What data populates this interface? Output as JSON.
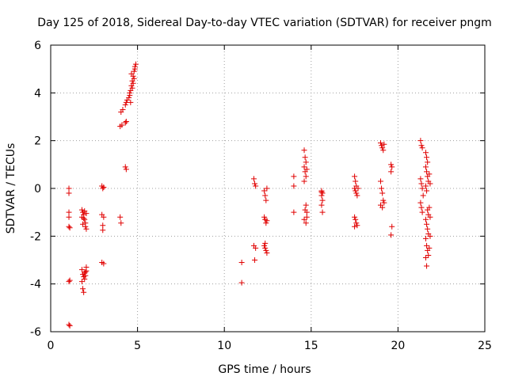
{
  "chart_data": {
    "type": "scatter",
    "title": "Day 125 of 2018, Sidereal Day-to-day VTEC variation (SDTVAR) for receiver pngm",
    "xlabel": "GPS time / hours",
    "ylabel": "SDTVAR / TECUs",
    "xlim": [
      0,
      25
    ],
    "ylim": [
      -6,
      6
    ],
    "xticks": [
      0,
      5,
      10,
      15,
      20,
      25
    ],
    "yticks": [
      -6,
      -4,
      -2,
      0,
      2,
      4,
      6
    ],
    "grid": true,
    "marker": "+",
    "color": "#e00000",
    "series": [
      {
        "name": "SDTVAR",
        "points": [
          [
            1.05,
            0.0
          ],
          [
            1.05,
            -0.2
          ],
          [
            1.05,
            -1.0
          ],
          [
            1.05,
            -1.2
          ],
          [
            1.05,
            -1.6
          ],
          [
            1.1,
            -1.65
          ],
          [
            1.05,
            -3.9
          ],
          [
            1.1,
            -3.85
          ],
          [
            1.05,
            -5.7
          ],
          [
            1.1,
            -5.75
          ],
          [
            1.8,
            -0.9
          ],
          [
            1.85,
            -1.0
          ],
          [
            1.9,
            -1.1
          ],
          [
            1.8,
            -1.2
          ],
          [
            1.95,
            -1.3
          ],
          [
            2.0,
            -1.45
          ],
          [
            1.85,
            -1.5
          ],
          [
            2.0,
            -1.6
          ],
          [
            2.05,
            -1.7
          ],
          [
            1.9,
            -1.25
          ],
          [
            2.05,
            -1.05
          ],
          [
            1.95,
            -0.95
          ],
          [
            1.8,
            -3.4
          ],
          [
            1.85,
            -3.6
          ],
          [
            1.9,
            -3.7
          ],
          [
            1.95,
            -3.8
          ],
          [
            2.0,
            -3.5
          ],
          [
            2.05,
            -3.3
          ],
          [
            1.8,
            -3.9
          ],
          [
            1.85,
            -4.2
          ],
          [
            1.9,
            -4.35
          ],
          [
            2.0,
            -3.65
          ],
          [
            2.05,
            -3.45
          ],
          [
            1.95,
            -3.55
          ],
          [
            2.95,
            0.1
          ],
          [
            3.0,
            0.0
          ],
          [
            3.05,
            0.05
          ],
          [
            2.95,
            -1.1
          ],
          [
            3.05,
            -1.2
          ],
          [
            3.0,
            -1.55
          ],
          [
            3.0,
            -1.75
          ],
          [
            2.95,
            -3.1
          ],
          [
            3.05,
            -3.15
          ],
          [
            4.0,
            -1.2
          ],
          [
            4.05,
            -1.45
          ],
          [
            4.0,
            2.6
          ],
          [
            4.1,
            2.65
          ],
          [
            4.05,
            3.2
          ],
          [
            4.15,
            3.3
          ],
          [
            4.3,
            3.5
          ],
          [
            4.35,
            3.6
          ],
          [
            4.3,
            2.75
          ],
          [
            4.35,
            2.8
          ],
          [
            4.3,
            0.9
          ],
          [
            4.35,
            0.8
          ],
          [
            4.4,
            3.7
          ],
          [
            4.5,
            3.8
          ],
          [
            4.55,
            3.9
          ],
          [
            4.6,
            4.1
          ],
          [
            4.65,
            4.3
          ],
          [
            4.7,
            4.5
          ],
          [
            4.75,
            4.7
          ],
          [
            4.8,
            4.9
          ],
          [
            4.85,
            5.1
          ],
          [
            4.9,
            5.2
          ],
          [
            4.6,
            3.6
          ],
          [
            4.7,
            4.2
          ],
          [
            4.75,
            4.4
          ],
          [
            4.8,
            4.6
          ],
          [
            4.55,
            4.0
          ],
          [
            4.65,
            4.8
          ],
          [
            4.85,
            5.0
          ],
          [
            11.0,
            -3.1
          ],
          [
            11.0,
            -3.95
          ],
          [
            11.7,
            0.4
          ],
          [
            11.75,
            0.2
          ],
          [
            11.8,
            0.1
          ],
          [
            11.7,
            -2.4
          ],
          [
            11.8,
            -2.5
          ],
          [
            11.75,
            -3.0
          ],
          [
            12.3,
            -0.1
          ],
          [
            12.35,
            -0.3
          ],
          [
            12.4,
            -0.5
          ],
          [
            12.45,
            0.0
          ],
          [
            12.3,
            -1.2
          ],
          [
            12.35,
            -1.3
          ],
          [
            12.4,
            -1.45
          ],
          [
            12.45,
            -1.35
          ],
          [
            12.3,
            -2.4
          ],
          [
            12.35,
            -2.5
          ],
          [
            12.4,
            -2.6
          ],
          [
            12.45,
            -2.7
          ],
          [
            12.35,
            -2.3
          ],
          [
            14.0,
            0.5
          ],
          [
            14.0,
            0.1
          ],
          [
            14.0,
            -1.0
          ],
          [
            14.6,
            1.6
          ],
          [
            14.65,
            1.3
          ],
          [
            14.7,
            1.1
          ],
          [
            14.6,
            0.9
          ],
          [
            14.65,
            0.7
          ],
          [
            14.7,
            0.5
          ],
          [
            14.75,
            0.8
          ],
          [
            14.6,
            0.3
          ],
          [
            14.7,
            -0.7
          ],
          [
            14.65,
            -0.9
          ],
          [
            14.75,
            -1.0
          ],
          [
            14.6,
            -1.3
          ],
          [
            14.7,
            -1.45
          ],
          [
            14.75,
            -1.2
          ],
          [
            15.6,
            -0.1
          ],
          [
            15.65,
            -0.2
          ],
          [
            15.6,
            -0.3
          ],
          [
            15.65,
            -0.5
          ],
          [
            15.6,
            -0.7
          ],
          [
            15.65,
            -1.0
          ],
          [
            15.6,
            -0.15
          ],
          [
            17.5,
            0.5
          ],
          [
            17.55,
            0.3
          ],
          [
            17.6,
            0.1
          ],
          [
            17.5,
            0.0
          ],
          [
            17.55,
            -0.1
          ],
          [
            17.6,
            -0.2
          ],
          [
            17.65,
            -0.3
          ],
          [
            17.5,
            -1.2
          ],
          [
            17.55,
            -1.3
          ],
          [
            17.6,
            -1.45
          ],
          [
            17.65,
            -1.55
          ],
          [
            17.5,
            -1.6
          ],
          [
            17.7,
            0.0
          ],
          [
            19.0,
            1.9
          ],
          [
            19.05,
            1.8
          ],
          [
            19.1,
            1.7
          ],
          [
            19.15,
            1.6
          ],
          [
            19.2,
            1.85
          ],
          [
            19.0,
            0.3
          ],
          [
            19.05,
            0.0
          ],
          [
            19.1,
            -0.2
          ],
          [
            19.15,
            -0.5
          ],
          [
            19.0,
            -0.7
          ],
          [
            19.2,
            -0.6
          ],
          [
            19.1,
            -0.8
          ],
          [
            19.6,
            1.0
          ],
          [
            19.65,
            0.9
          ],
          [
            19.6,
            0.7
          ],
          [
            19.65,
            -1.6
          ],
          [
            19.6,
            -1.95
          ],
          [
            21.3,
            2.0
          ],
          [
            21.35,
            1.8
          ],
          [
            21.4,
            1.7
          ],
          [
            21.3,
            0.4
          ],
          [
            21.35,
            0.2
          ],
          [
            21.4,
            0.0
          ],
          [
            21.45,
            -0.3
          ],
          [
            21.3,
            -0.6
          ],
          [
            21.35,
            -0.8
          ],
          [
            21.4,
            -1.0
          ],
          [
            21.6,
            1.5
          ],
          [
            21.65,
            1.3
          ],
          [
            21.7,
            1.1
          ],
          [
            21.6,
            0.9
          ],
          [
            21.65,
            0.7
          ],
          [
            21.7,
            0.5
          ],
          [
            21.75,
            0.3
          ],
          [
            21.6,
            0.1
          ],
          [
            21.65,
            -0.1
          ],
          [
            21.7,
            -0.9
          ],
          [
            21.75,
            -1.1
          ],
          [
            21.6,
            -1.3
          ],
          [
            21.65,
            -1.5
          ],
          [
            21.7,
            -1.7
          ],
          [
            21.75,
            -1.9
          ],
          [
            21.6,
            -2.1
          ],
          [
            21.65,
            -2.4
          ],
          [
            21.7,
            -2.6
          ],
          [
            21.75,
            -2.8
          ],
          [
            21.6,
            -2.9
          ],
          [
            21.65,
            -3.25
          ],
          [
            21.8,
            -2.5
          ],
          [
            21.85,
            -1.2
          ],
          [
            21.8,
            -0.8
          ],
          [
            21.85,
            0.2
          ],
          [
            21.8,
            0.6
          ],
          [
            21.85,
            -2.0
          ]
        ]
      }
    ]
  }
}
